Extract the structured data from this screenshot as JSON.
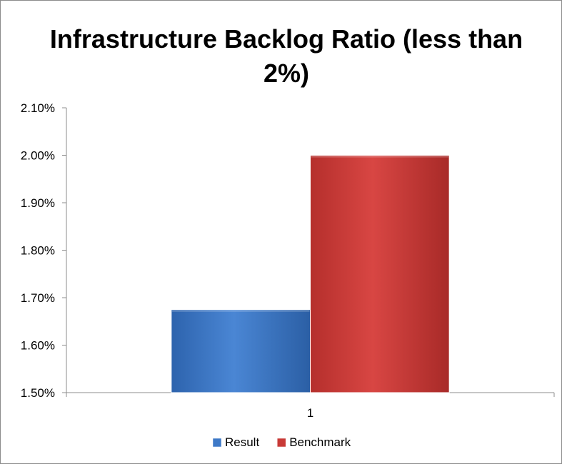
{
  "chart_data": {
    "type": "bar",
    "title": "Infrastructure Backlog Ratio (less than 2%)",
    "categories": [
      "1"
    ],
    "series": [
      {
        "name": "Result",
        "values": [
          0.01675
        ],
        "color": "#3e79c7"
      },
      {
        "name": "Benchmark",
        "values": [
          0.02
        ],
        "color": "#c83a37"
      }
    ],
    "yticks": [
      "1.50%",
      "1.60%",
      "1.70%",
      "1.80%",
      "1.90%",
      "2.00%",
      "2.10%"
    ],
    "ylim": [
      0.015,
      0.021
    ],
    "grid": false,
    "legend": "bottom"
  }
}
